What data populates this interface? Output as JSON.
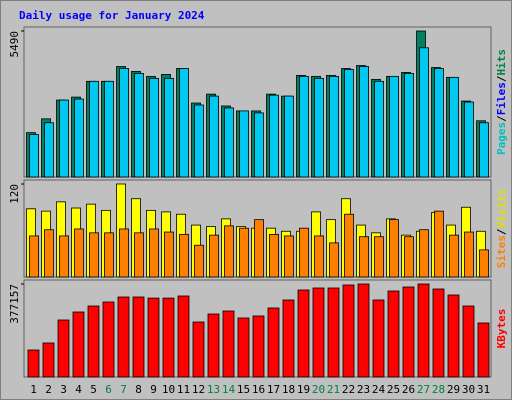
{
  "title": "Daily usage for January 2024",
  "chart_data": [
    {
      "type": "bar",
      "ylim": [
        0,
        5490
      ],
      "yticks": [
        5490
      ],
      "legend": [
        {
          "text": "Pages",
          "color": "#00c0c0"
        },
        {
          "text": "/",
          "color": "#000000"
        },
        {
          "text": "Files",
          "color": "#0000ff"
        },
        {
          "text": "/",
          "color": "#000000"
        },
        {
          "text": "Hits",
          "color": "#008040"
        }
      ],
      "series": [
        {
          "name": "Hits",
          "color": "#008060",
          "values": [
            1669,
            2188,
            2893,
            3005,
            3598,
            3598,
            4155,
            3969,
            3784,
            3858,
            4080,
            2782,
            3116,
            2671,
            2485,
            2485,
            3116,
            3042,
            3821,
            3784,
            3821,
            4080,
            4192,
            3672,
            3784,
            3932,
            5490,
            4117,
            3747,
            2856,
            2114
          ]
        },
        {
          "name": "Files",
          "color": "#00c8f0",
          "values": [
            1595,
            2040,
            2893,
            2930,
            3598,
            3598,
            4080,
            3895,
            3709,
            3709,
            4080,
            2708,
            3042,
            2597,
            2485,
            2411,
            3079,
            3042,
            3784,
            3709,
            3784,
            4043,
            4155,
            3598,
            3784,
            3895,
            4859,
            4080,
            3747,
            2819,
            2040
          ]
        }
      ]
    },
    {
      "type": "bar",
      "ylim": [
        0,
        120
      ],
      "yticks": [
        120
      ],
      "legend": [
        {
          "text": "Sites",
          "color": "#ff8000"
        },
        {
          "text": "/",
          "color": "#000000"
        },
        {
          "text": "Visits",
          "color": "#e0e000"
        }
      ],
      "series": [
        {
          "name": "Visits",
          "color": "#ffff00",
          "values": [
            88,
            85,
            97,
            89,
            94,
            86,
            120,
            101,
            86,
            84,
            81,
            67,
            65,
            75,
            65,
            63,
            63,
            59,
            59,
            84,
            74,
            101,
            67,
            57,
            75,
            54,
            59,
            83,
            67,
            90,
            59
          ]
        },
        {
          "name": "Sites",
          "color": "#ff8000",
          "values": [
            53,
            61,
            53,
            62,
            57,
            57,
            62,
            57,
            62,
            58,
            55,
            41,
            54,
            66,
            63,
            74,
            55,
            53,
            63,
            53,
            44,
            81,
            52,
            52,
            74,
            52,
            61,
            85,
            54,
            58,
            35
          ]
        }
      ]
    },
    {
      "type": "bar",
      "ylim": [
        0,
        377157
      ],
      "yticks": [
        377157
      ],
      "legend": [
        {
          "text": "KBytes",
          "color": "#ff0000"
        }
      ],
      "categories": [
        "1",
        "2",
        "3",
        "4",
        "5",
        "6",
        "7",
        "8",
        "9",
        "10",
        "11",
        "12",
        "13",
        "14",
        "15",
        "16",
        "17",
        "18",
        "19",
        "20",
        "21",
        "22",
        "23",
        "24",
        "25",
        "26",
        "27",
        "28",
        "29",
        "30",
        "31"
      ],
      "category_colors": [
        "#000000",
        "#000000",
        "#000000",
        "#000000",
        "#000000",
        "#008040",
        "#008040",
        "#000000",
        "#000000",
        "#000000",
        "#000000",
        "#000000",
        "#008040",
        "#008040",
        "#000000",
        "#000000",
        "#000000",
        "#000000",
        "#000000",
        "#008040",
        "#008040",
        "#000000",
        "#000000",
        "#000000",
        "#000000",
        "#000000",
        "#008040",
        "#008040",
        "#000000",
        "#000000",
        "#000000"
      ],
      "series": [
        {
          "name": "KBytes",
          "color": "#ff0000",
          "values": [
            109497,
            137886,
            231160,
            263604,
            287941,
            304164,
            324440,
            324440,
            320000,
            320000,
            328500,
            223050,
            255500,
            267660,
            239280,
            247390,
            279830,
            312270,
            352830,
            360940,
            360940,
            373100,
            377157,
            312270,
            348770,
            365000,
            377157,
            356880,
            332550,
            287941,
            219000
          ]
        }
      ]
    }
  ]
}
